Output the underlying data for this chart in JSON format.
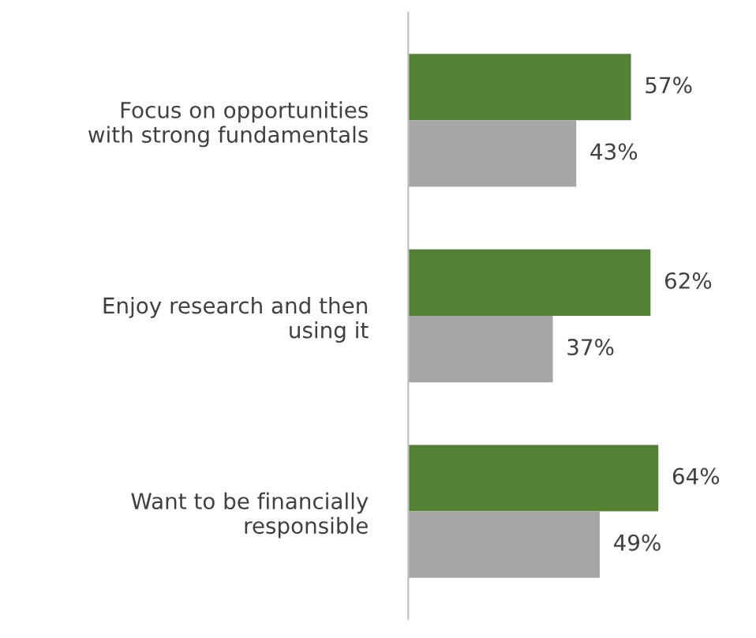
{
  "chart_data": {
    "type": "bar",
    "orientation": "horizontal",
    "categories": [
      "Focus on opportunities\nwith strong fundamentals",
      "Enjoy research and then\nusing it",
      "Want to be financially\nresponsible"
    ],
    "series": [
      {
        "color": "#548235",
        "values": [
          57,
          62,
          64
        ],
        "value_labels": [
          "57%",
          "62%",
          "64%"
        ]
      },
      {
        "color": "#a5a5a5",
        "values": [
          43,
          37,
          49
        ],
        "value_labels": [
          "43%",
          "37%",
          "49%"
        ]
      }
    ],
    "grid": false,
    "legend": false,
    "tick_labels": "y"
  }
}
